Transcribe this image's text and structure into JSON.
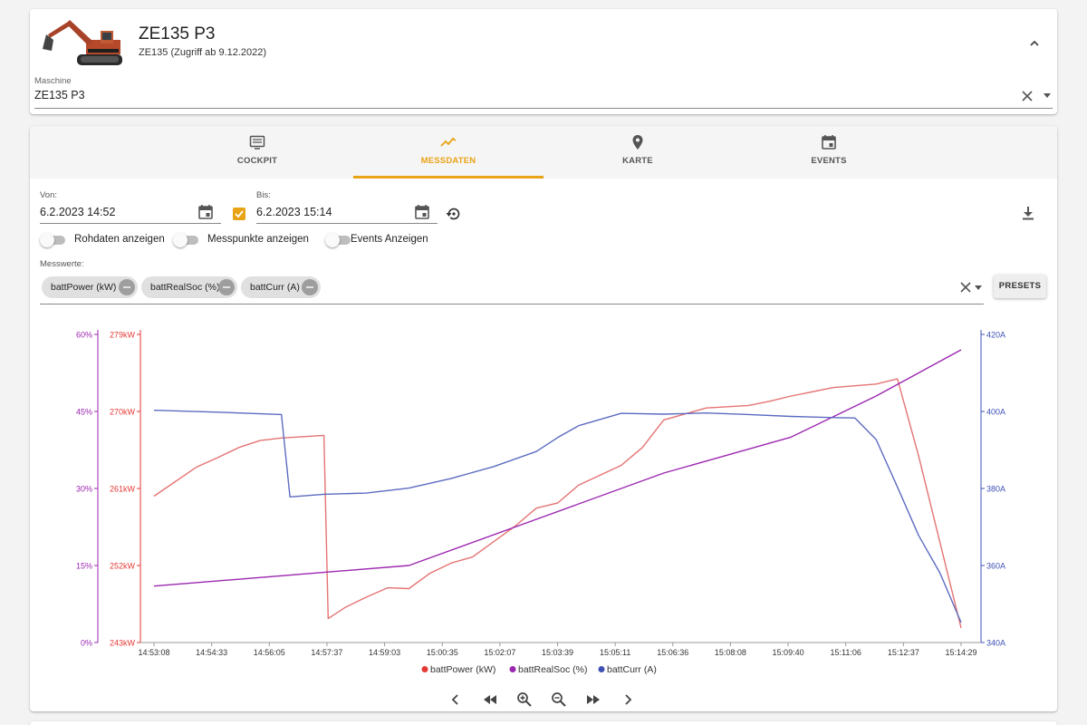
{
  "header": {
    "title": "ZE135 P3",
    "subtitle": "ZE135 (Zugriff ab 9.12.2022)",
    "machine_label": "Maschine",
    "machine_value": "ZE135 P3"
  },
  "tabs": [
    {
      "label": "COCKPIT",
      "icon": "dashboard-icon"
    },
    {
      "label": "MESSDATEN",
      "icon": "trend-icon"
    },
    {
      "label": "KARTE",
      "icon": "map-pin-icon"
    },
    {
      "label": "EVENTS",
      "icon": "calendar-icon"
    }
  ],
  "active_tab": "MESSDATEN",
  "accent_color": "#e8a317",
  "filters": {
    "from_label": "Von:",
    "from_value": "6.2.2023 14:52",
    "to_label": "Bis:",
    "to_value": "6.2.2023 15:14",
    "toggles": [
      {
        "label": "Rohdaten anzeigen",
        "on": false
      },
      {
        "label": "Messpunkte anzeigen",
        "on": false
      },
      {
        "label": "Events Anzeigen",
        "on": false
      }
    ],
    "messwerte_label": "Messwerte:",
    "chips": [
      "battPower (kW)",
      "battRealSoc (%)",
      "battCurr (A)"
    ],
    "presets_label": "PRESETS"
  },
  "chart_data": {
    "type": "line",
    "x_ticks": [
      "14:53:08",
      "14:54:33",
      "14:56:05",
      "14:57:37",
      "14:59:03",
      "15:00:35",
      "15:02:07",
      "15:03:39",
      "15:05:11",
      "15:06:36",
      "15:08:08",
      "15:09:40",
      "15:11:06",
      "15:12:37",
      "15:14:29"
    ],
    "axes": {
      "left_outer": {
        "ticks": [
          "0%",
          "15%",
          "30%",
          "45%",
          "60%"
        ],
        "range": [
          0,
          60
        ],
        "unit": "%",
        "color": "#9c27b0"
      },
      "left_inner": {
        "ticks": [
          "243kW",
          "252kW",
          "261kW",
          "270kW",
          "279kW"
        ],
        "range": [
          243,
          279
        ],
        "unit": "kW",
        "color": "#e53935"
      },
      "right": {
        "ticks": [
          "340A",
          "360A",
          "380A",
          "400A",
          "420A"
        ],
        "range": [
          340,
          420
        ],
        "unit": "A",
        "color": "#3f51b5"
      }
    },
    "series": [
      {
        "name": "battPower (kW)",
        "axis": "left_inner",
        "color": "#e57373",
        "x": [
          14.53,
          14.54,
          14.545,
          14.55,
          14.555,
          14.56,
          14.57,
          14.571,
          14.575,
          14.58,
          14.585,
          14.59,
          14.595,
          14.6,
          14.605,
          14.61,
          14.615,
          14.62,
          14.625,
          14.63,
          14.64,
          14.645,
          14.65,
          14.66,
          14.67,
          14.675,
          14.68,
          14.69,
          14.7,
          14.705,
          14.71,
          14.72
        ],
        "values": [
          260.1,
          263.5,
          264.6,
          265.8,
          266.6,
          266.9,
          267.2,
          245.8,
          247.1,
          248.3,
          249.4,
          249.3,
          251.1,
          252.3,
          253.0,
          254.8,
          256.6,
          258.7,
          259.3,
          261.4,
          263.7,
          265.8,
          269.0,
          270.4,
          270.7,
          271.2,
          271.8,
          272.8,
          273.2,
          273.8,
          264.8,
          244.7
        ]
      },
      {
        "name": "battRealSoc (%)",
        "axis": "left_outer",
        "color": "#9c27b0",
        "x": [
          14.53,
          14.59,
          14.62,
          14.65,
          14.68,
          14.7,
          14.72
        ],
        "values": [
          11,
          15,
          24,
          33,
          40,
          48,
          57
        ]
      },
      {
        "name": "battCurr (A)",
        "axis": "right",
        "color": "#5c6bc0",
        "x": [
          14.53,
          14.545,
          14.56,
          14.562,
          14.57,
          14.58,
          14.59,
          14.6,
          14.61,
          14.62,
          14.625,
          14.63,
          14.64,
          14.65,
          14.66,
          14.67,
          14.68,
          14.69,
          14.695,
          14.7,
          14.705,
          14.71,
          14.715,
          14.72
        ],
        "values": [
          400.3,
          399.8,
          399.2,
          377.8,
          378.5,
          378.8,
          380.1,
          382.6,
          385.7,
          389.6,
          393.2,
          396.3,
          399.5,
          399.3,
          399.6,
          399.2,
          398.7,
          398.4,
          398.3,
          392.7,
          380.4,
          367.8,
          358.1,
          345.2
        ]
      }
    ],
    "legend": [
      "battPower (kW)",
      "battRealSoc (%)",
      "battCurr (A)"
    ],
    "legend_position": "bottom"
  }
}
